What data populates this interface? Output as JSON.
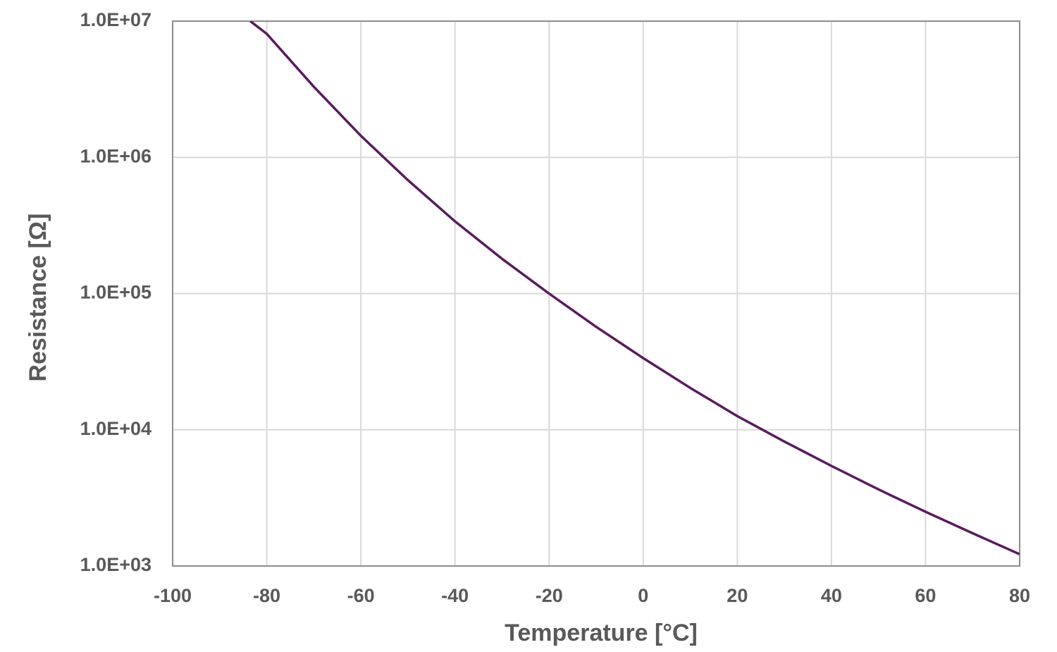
{
  "chart_data": {
    "type": "line",
    "x_label": "Temperature [°C]",
    "y_label": "Resistance [Ω]",
    "x": [
      -83.5,
      -80,
      -70,
      -60,
      -50,
      -40,
      -30,
      -20,
      -10,
      0,
      10,
      20,
      30,
      40,
      50,
      60,
      70,
      80
    ],
    "series": [
      {
        "name": "Resistance",
        "color": "#5a1a5e",
        "values": [
          10000000,
          8070000,
          3300000,
          1440000,
          680000,
          339000,
          180000,
          100000,
          57000,
          33600,
          20300,
          12600,
          8200,
          5430,
          3650,
          2500,
          1740,
          1220
        ]
      }
    ],
    "xlim": [
      -100,
      80
    ],
    "xticks": [
      -100,
      -80,
      -60,
      -40,
      -20,
      0,
      20,
      40,
      60,
      80
    ],
    "ylim": [
      1000,
      10000000
    ],
    "yticks": [
      {
        "value": 1000,
        "label": "1.0E+03"
      },
      {
        "value": 10000,
        "label": "1.0E+04"
      },
      {
        "value": 100000,
        "label": "1.0E+05"
      },
      {
        "value": 1000000,
        "label": "1.0E+06"
      },
      {
        "value": 10000000,
        "label": "1.0E+07"
      }
    ],
    "log_y": true,
    "grid": true
  }
}
